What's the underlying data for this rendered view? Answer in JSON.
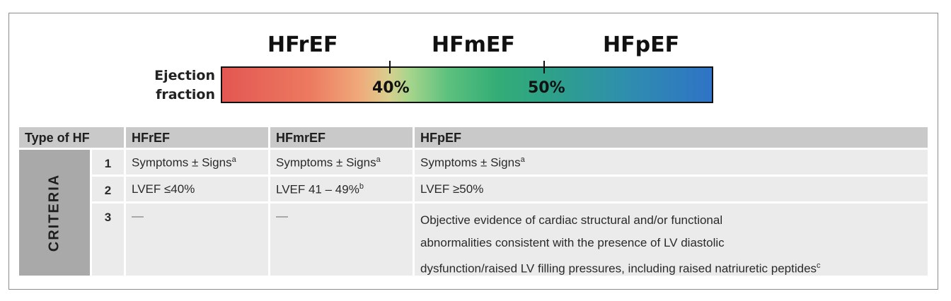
{
  "scale": {
    "label_line1": "Ejection",
    "label_line2": "fraction",
    "headings": [
      "HFrEF",
      "HFmEF",
      "HFpEF"
    ],
    "ticks": [
      "40%",
      "50%"
    ]
  },
  "colors": {
    "gradient": [
      "#e35752",
      "#f0a97a",
      "#a9d58c",
      "#34ad76",
      "#2f73c6"
    ],
    "header_bg": "#c9c9c9",
    "row_bg": "#ebebeb",
    "side_bg": "#a9a9a9"
  },
  "table": {
    "headers": [
      "Type of HF",
      "HFrEF",
      "HFmrEF",
      "HFpEF"
    ],
    "side_label": "CRITERIA",
    "rows": [
      {
        "num": "1",
        "c1": "Symptoms ± Signs",
        "c1_sup": "a",
        "c2": "Symptoms ± Signs",
        "c2_sup": "a",
        "c3": "Symptoms ± Signs",
        "c3_sup": "a"
      },
      {
        "num": "2",
        "c1": "LVEF ≤40%",
        "c2": "LVEF 41 – 49%",
        "c2_sup": "b",
        "c3": "LVEF ≥50%"
      },
      {
        "num": "3",
        "c1": "—",
        "c2": "—",
        "c3_line1": "Objective evidence of cardiac structural and/or functional",
        "c3_line2": "abnormalities consistent with the presence of LV diastolic",
        "c3_line3": "dysfunction/raised LV filling pressures, including raised natriuretic peptides",
        "c3_sup": "c"
      }
    ]
  }
}
